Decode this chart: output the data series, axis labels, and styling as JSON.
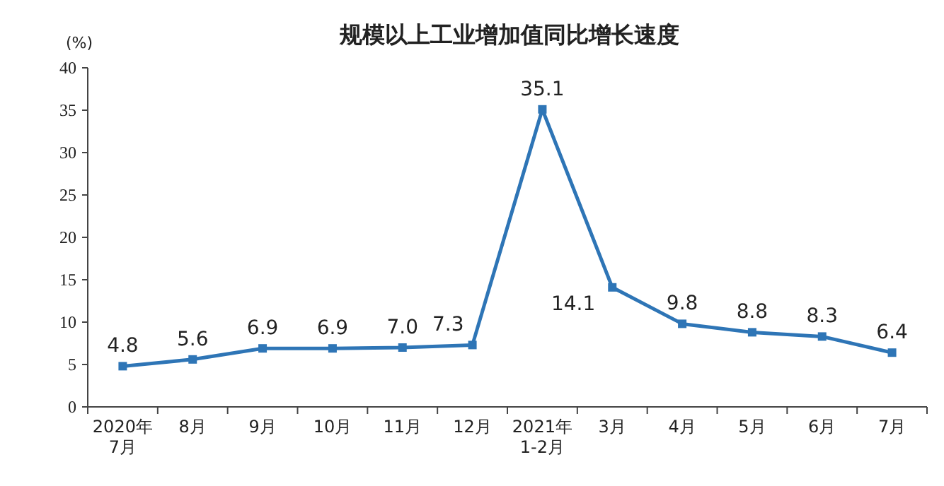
{
  "chart_data": {
    "type": "line",
    "title": "规模以上工业增加值同比增长速度",
    "ylabel": "(%)",
    "categories": [
      "2020年\n7月",
      "8月",
      "9月",
      "10月",
      "11月",
      "12月",
      "2021年\n1-2月",
      "3月",
      "4月",
      "5月",
      "6月",
      "7月"
    ],
    "values": [
      4.8,
      5.6,
      6.9,
      6.9,
      7.0,
      7.3,
      35.1,
      14.1,
      9.8,
      8.8,
      8.3,
      6.4
    ],
    "value_labels": [
      "4.8",
      "5.6",
      "6.9",
      "6.9",
      "7.0",
      "7.3",
      "35.1",
      "14.1",
      "9.8",
      "8.8",
      "8.3",
      "6.4"
    ],
    "color": "#2e75b6",
    "marker": "square",
    "line_style": "solid",
    "grid": false,
    "ylim": [
      0,
      40
    ],
    "yticks": [
      0,
      5,
      10,
      15,
      20,
      25,
      30,
      35,
      40
    ]
  }
}
